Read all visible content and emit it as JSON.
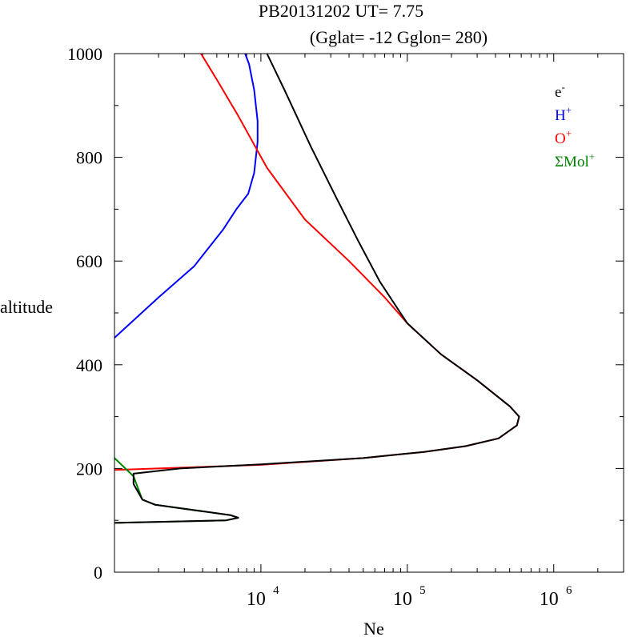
{
  "title_line1": "PB20131202   UT=  7.75",
  "title_line2": "(Gglat= -12   Gglon=  280)",
  "xlabel": "Ne",
  "ylabel": "altitude",
  "colors": {
    "e": "#000000",
    "H": "#0000ff",
    "O": "#ff0000",
    "Mol": "#008000"
  },
  "legend": [
    {
      "key": "e",
      "base": "e",
      "sup": "-"
    },
    {
      "key": "H",
      "base": "H",
      "sup": "+"
    },
    {
      "key": "O",
      "base": "O",
      "sup": "+"
    },
    {
      "key": "Mol",
      "base": "ΣMol",
      "sup": "+"
    }
  ],
  "chart_data": {
    "type": "line",
    "title": "PB20131202   UT=  7.75   (Gglat= -12   Gglon=  280)",
    "xlabel": "Ne",
    "ylabel": "altitude",
    "x_scale": "log",
    "xlim": [
      1000,
      3000000
    ],
    "ylim": [
      0,
      1000
    ],
    "x_ticks": [
      {
        "value": 10000,
        "base": "10",
        "exp": "4"
      },
      {
        "value": 100000,
        "base": "10",
        "exp": "5"
      },
      {
        "value": 1000000,
        "base": "10",
        "exp": "6"
      }
    ],
    "y_ticks": [
      0,
      200,
      400,
      600,
      800,
      1000
    ],
    "legend_position": "top-right",
    "series": [
      {
        "name": "e-",
        "key": "e",
        "points": [
          [
            1000,
            95
          ],
          [
            5800,
            100
          ],
          [
            7000,
            105
          ],
          [
            6200,
            110
          ],
          [
            1900,
            130
          ],
          [
            1550,
            140
          ],
          [
            1350,
            170
          ],
          [
            1350,
            190
          ],
          [
            2800,
            200
          ],
          [
            10000,
            208
          ],
          [
            50000,
            220
          ],
          [
            130000,
            232
          ],
          [
            250000,
            243
          ],
          [
            420000,
            258
          ],
          [
            560000,
            283
          ],
          [
            580000,
            300
          ],
          [
            500000,
            320
          ],
          [
            300000,
            370
          ],
          [
            170000,
            420
          ],
          [
            100000,
            480
          ],
          [
            65000,
            560
          ],
          [
            46000,
            640
          ],
          [
            33000,
            720
          ],
          [
            22000,
            820
          ],
          [
            14500,
            930
          ],
          [
            11000,
            1000
          ]
        ]
      },
      {
        "name": "H+",
        "key": "H",
        "points": [
          [
            1000,
            452
          ],
          [
            2000,
            530
          ],
          [
            3500,
            590
          ],
          [
            5500,
            660
          ],
          [
            6800,
            700
          ],
          [
            8200,
            730
          ],
          [
            9000,
            770
          ],
          [
            9500,
            830
          ],
          [
            9500,
            870
          ],
          [
            9000,
            930
          ],
          [
            8300,
            980
          ],
          [
            7800,
            1000
          ]
        ]
      },
      {
        "name": "O+",
        "key": "O",
        "points": [
          [
            1000,
            197
          ],
          [
            10000,
            207
          ],
          [
            50000,
            220
          ],
          [
            130000,
            232
          ],
          [
            250000,
            243
          ],
          [
            420000,
            258
          ],
          [
            560000,
            283
          ],
          [
            580000,
            300
          ],
          [
            500000,
            320
          ],
          [
            300000,
            370
          ],
          [
            170000,
            420
          ],
          [
            100000,
            480
          ],
          [
            70000,
            530
          ],
          [
            40000,
            600
          ],
          [
            20000,
            680
          ],
          [
            11000,
            780
          ],
          [
            7000,
            880
          ],
          [
            5000,
            950
          ],
          [
            3900,
            1000
          ]
        ]
      },
      {
        "name": "ΣMol+",
        "key": "Mol",
        "points": [
          [
            1000,
            220
          ],
          [
            1350,
            185
          ],
          [
            1550,
            140
          ],
          [
            1900,
            130
          ],
          [
            6200,
            110
          ],
          [
            7000,
            105
          ],
          [
            5800,
            100
          ],
          [
            1000,
            95
          ]
        ]
      }
    ]
  }
}
